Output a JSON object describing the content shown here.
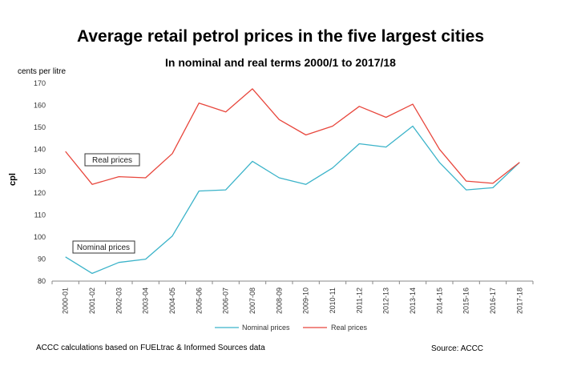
{
  "title": "Average retail petrol prices in the five largest cities",
  "subtitle": "In nominal and real terms 2000/1 to 2017/18",
  "footnote": "ACCC calculations based on FUELtrac & Informed Sources data",
  "source": "Source: ACCC",
  "chart_data": {
    "type": "line",
    "title": "Average retail petrol prices in the five largest cities",
    "subtitle": "In nominal and real terms 2000/1 to 2017/18",
    "unit_label": "cents per litre",
    "ylabel": "cpl",
    "xlabel": "",
    "ylim": [
      80,
      170
    ],
    "yticks": [
      80,
      90,
      100,
      110,
      120,
      130,
      140,
      150,
      160,
      170
    ],
    "grid": false,
    "legend_position": "bottom",
    "categories": [
      "2000-01",
      "2001-02",
      "2002-03",
      "2003-04",
      "2004-05",
      "2005-06",
      "2006-07",
      "2007-08",
      "2008-09",
      "2009-10",
      "2010-11",
      "2011-12",
      "2012-13",
      "2013-14",
      "2014-15",
      "2015-16",
      "2016-17",
      "2017-18"
    ],
    "series": [
      {
        "name": "Nominal prices",
        "color": "#3bb3c9",
        "values": [
          91,
          83.5,
          88.5,
          90,
          100.5,
          121,
          121.5,
          134.5,
          127,
          124,
          131.5,
          142.5,
          141,
          150.5,
          134,
          121.5,
          122.5,
          134
        ]
      },
      {
        "name": "Real prices",
        "color": "#e8463c",
        "values": [
          139,
          124,
          127.5,
          127,
          138,
          161,
          157,
          167.5,
          153.5,
          146.5,
          150.5,
          159.5,
          154.5,
          160.5,
          140,
          125.5,
          124.5,
          134
        ]
      }
    ],
    "annotations": [
      "Real prices",
      "Nominal prices"
    ]
  }
}
